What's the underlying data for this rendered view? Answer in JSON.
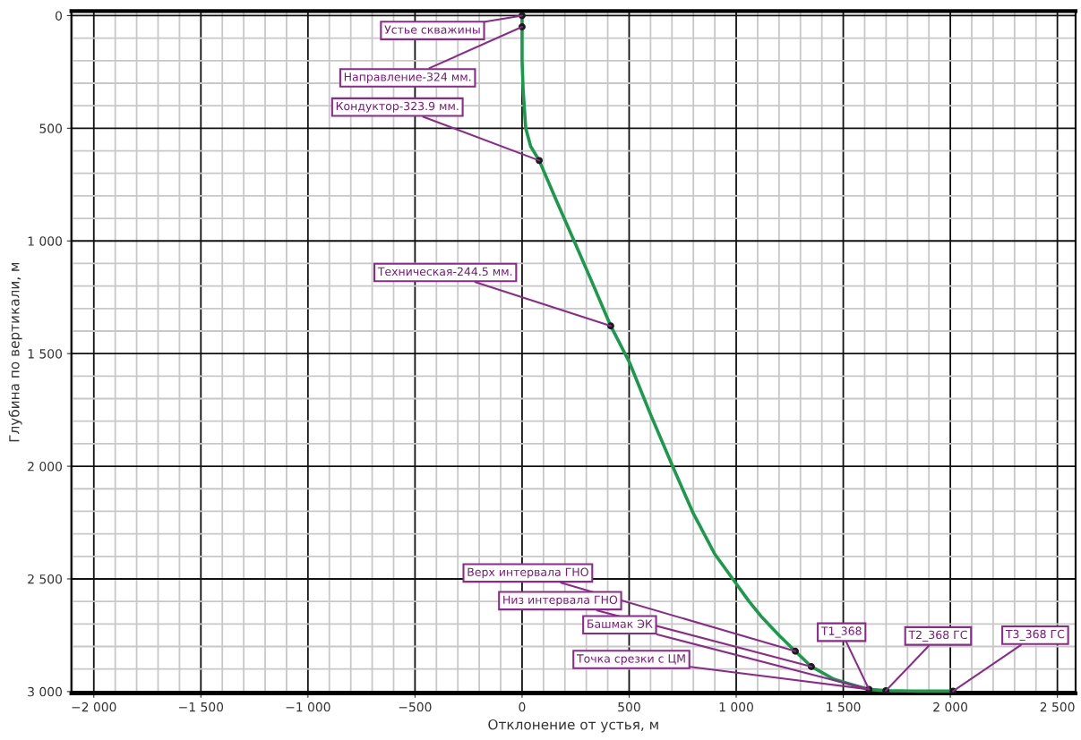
{
  "chart_data": {
    "type": "line",
    "xlabel": "Отклонение от устья, м",
    "ylabel": "Глубина по вертикали, м",
    "series": [
      {
        "color": "#1a9a4a",
        "x": [
          0,
          0,
          0,
          5,
          17,
          40,
          80,
          160,
          243,
          330,
          414,
          502,
          600,
          703,
          800,
          900,
          987,
          1060,
          1121,
          1200,
          1276,
          1351,
          1456,
          1561,
          1620,
          1699,
          1850,
          2013
        ],
        "values": [
          0,
          50,
          200,
          330,
          500,
          580,
          643,
          820,
          1000,
          1190,
          1377,
          1540,
          1770,
          2000,
          2210,
          2390,
          2504,
          2600,
          2671,
          2750,
          2821,
          2889,
          2945,
          2975,
          2990,
          2996,
          2998,
          2998
        ]
      },
      {
        "type": "scatter",
        "color": "#1a1a1a",
        "x": [
          0,
          0,
          80,
          414,
          1276,
          1351,
          1600,
          1620,
          1699,
          2013
        ],
        "values": [
          0,
          50,
          643,
          1377,
          2821,
          2889,
          null,
          2990,
          2996,
          2998
        ]
      }
    ],
    "annotations": [
      {
        "text": "Устье скважины",
        "x": 0,
        "y": 0
      },
      {
        "text": "Направление-324 мм.",
        "x": 0,
        "y": 50
      },
      {
        "text": "Кондуктор-323.9 мм.",
        "x": 80,
        "y": 643
      },
      {
        "text": "Техническая-244.5 мм.",
        "x": 414,
        "y": 1377
      },
      {
        "text": "Верх интервала ГНО",
        "x": 1276,
        "y": 2821
      },
      {
        "text": "Низ интервала ГНО",
        "x": 1351,
        "y": 2889
      },
      {
        "text": "Башмак ЭК",
        "x": 1600,
        "y": 2985
      },
      {
        "text": "Точка срезки с ЦМ",
        "x": 1620,
        "y": 2990
      },
      {
        "text": "T1_368",
        "x": 1620,
        "y": 2990
      },
      {
        "text": "T2_368 ГС",
        "x": 1699,
        "y": 2996
      },
      {
        "text": "T3_368 ГС",
        "x": 2013,
        "y": 2998
      }
    ],
    "xlim": [
      -2105,
      2585
    ],
    "xticks": [
      {
        "value": -2000,
        "label": "−2 000"
      },
      {
        "value": -1500,
        "label": "−1 500"
      },
      {
        "value": -1000,
        "label": "−1 000"
      },
      {
        "value": -500,
        "label": "−500"
      },
      0,
      500,
      {
        "value": 1000,
        "label": "1 000"
      },
      {
        "value": 1500,
        "label": "1 500"
      },
      {
        "value": 2000,
        "label": "2 000"
      },
      {
        "value": 2500,
        "label": "2 500"
      }
    ],
    "ylim": [
      3008,
      -20
    ],
    "yticks": [
      0,
      500,
      {
        "value": 1000,
        "label": "1 000"
      },
      {
        "value": 1500,
        "label": "1 500"
      },
      {
        "value": 2000,
        "label": "2 000"
      },
      {
        "value": 2500,
        "label": "2 500"
      },
      {
        "value": 3000,
        "label": "3 000"
      }
    ],
    "grid": true,
    "line_style": "solid"
  }
}
